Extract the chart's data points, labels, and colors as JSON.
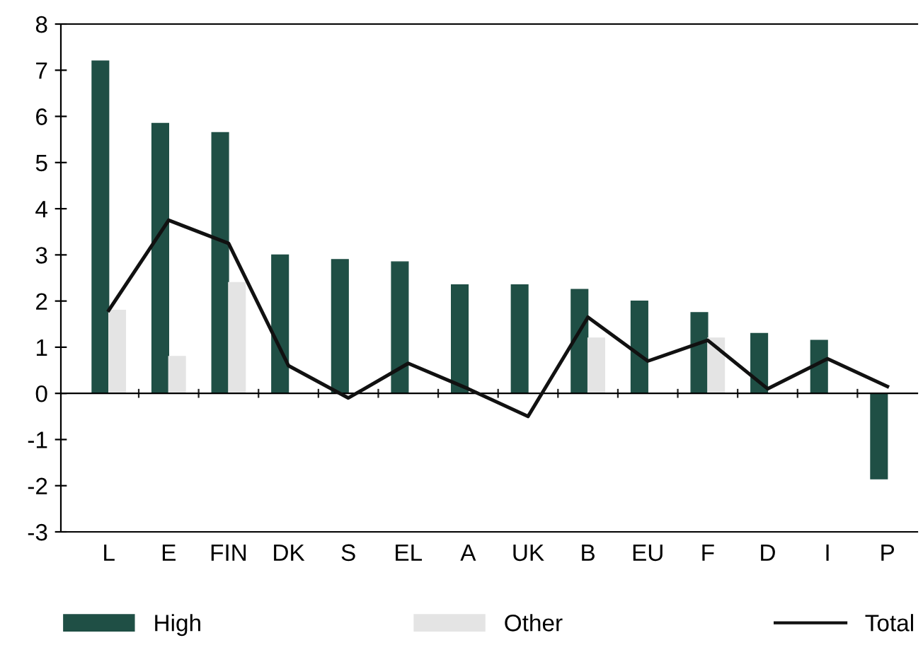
{
  "chart_data": {
    "type": "bar",
    "categories": [
      "L",
      "E",
      "FIN",
      "DK",
      "S",
      "EL",
      "A",
      "UK",
      "B",
      "EU",
      "F",
      "D",
      "I",
      "P"
    ],
    "series": [
      {
        "name": "High",
        "color": "#1f4f45",
        "values": [
          7.2,
          5.85,
          5.65,
          3.0,
          2.9,
          2.85,
          2.35,
          2.35,
          2.25,
          2.0,
          1.75,
          1.3,
          1.15,
          -1.85
        ]
      },
      {
        "name": "Other",
        "color": "#e4e4e4",
        "values": [
          1.8,
          0.8,
          2.4,
          null,
          null,
          null,
          null,
          null,
          1.2,
          null,
          1.2,
          null,
          null,
          null
        ]
      },
      {
        "name": "Total",
        "type": "line",
        "color": "#111111",
        "values": [
          1.8,
          3.75,
          3.25,
          0.6,
          -0.1,
          0.65,
          0.1,
          -0.5,
          1.65,
          0.7,
          1.15,
          0.1,
          0.75,
          0.15
        ]
      }
    ],
    "ylim": [
      -3,
      8
    ],
    "yticks": [
      -3,
      -2,
      -1,
      0,
      1,
      2,
      3,
      4,
      5,
      6,
      7,
      8
    ],
    "legend": "bottom",
    "marker": "none",
    "line_style": "solid"
  }
}
